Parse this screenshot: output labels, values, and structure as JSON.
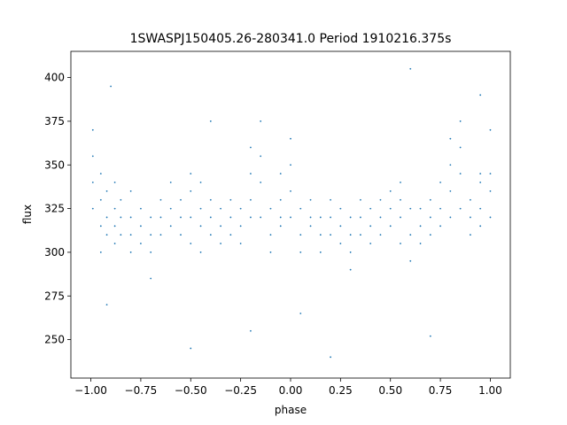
{
  "chart_data": {
    "type": "scatter",
    "title": "1SWASPJ150405.26-280341.0 Period 1910216.375s",
    "x_label": "phase",
    "y_label": "flux",
    "x": [
      -0.99,
      -0.99,
      -0.99,
      -0.99,
      -0.95,
      -0.95,
      -0.95,
      -0.95,
      -0.92,
      -0.92,
      -0.92,
      -0.92,
      -0.88,
      -0.88,
      -0.88,
      -0.88,
      -0.85,
      -0.85,
      -0.85,
      -0.8,
      -0.8,
      -0.8,
      -0.8,
      -0.75,
      -0.75,
      -0.75,
      -0.7,
      -0.7,
      -0.7,
      -0.7,
      -0.65,
      -0.65,
      -0.65,
      -0.6,
      -0.6,
      -0.6,
      -0.55,
      -0.55,
      -0.55,
      -0.5,
      -0.5,
      -0.5,
      -0.5,
      -0.45,
      -0.45,
      -0.45,
      -0.45,
      -0.4,
      -0.4,
      -0.4,
      -0.4,
      -0.35,
      -0.35,
      -0.35,
      -0.3,
      -0.3,
      -0.3,
      -0.25,
      -0.25,
      -0.25,
      -0.2,
      -0.2,
      -0.2,
      -0.2,
      -0.15,
      -0.15,
      -0.15,
      -0.15,
      -0.1,
      -0.1,
      -0.1,
      -0.05,
      -0.05,
      -0.05,
      -0.05,
      0,
      0,
      0,
      0,
      0.05,
      0.05,
      0.05,
      0.05,
      0.1,
      0.1,
      0.1,
      0.15,
      0.15,
      0.15,
      0.2,
      0.2,
      0.2,
      0.25,
      0.25,
      0.25,
      0.3,
      0.3,
      0.3,
      0.3,
      0.35,
      0.35,
      0.35,
      0.4,
      0.4,
      0.4,
      0.45,
      0.45,
      0.45,
      0.5,
      0.5,
      0.5,
      0.55,
      0.55,
      0.55,
      0.55,
      0.6,
      0.6,
      0.6,
      0.65,
      0.65,
      0.65,
      0.7,
      0.7,
      0.7,
      0.75,
      0.75,
      0.75,
      0.8,
      0.8,
      0.8,
      0.8,
      0.85,
      0.85,
      0.85,
      0.85,
      0.9,
      0.9,
      0.9,
      0.95,
      0.95,
      0.95,
      0.95,
      1.0,
      1.0,
      1.0,
      1.0,
      -0.9,
      0.6,
      -0.5,
      0.2,
      0.95,
      -0.2,
      0.7
    ],
    "values": [
      340,
      370,
      325,
      355,
      315,
      330,
      300,
      345,
      320,
      310,
      335,
      270,
      325,
      340,
      305,
      315,
      330,
      310,
      320,
      320,
      335,
      310,
      300,
      315,
      325,
      305,
      300,
      310,
      285,
      320,
      320,
      330,
      310,
      325,
      315,
      340,
      310,
      320,
      330,
      320,
      335,
      345,
      305,
      315,
      325,
      340,
      300,
      320,
      310,
      330,
      375,
      305,
      315,
      325,
      320,
      330,
      310,
      315,
      325,
      305,
      330,
      345,
      320,
      360,
      340,
      355,
      320,
      375,
      310,
      325,
      300,
      330,
      345,
      320,
      315,
      335,
      350,
      365,
      320,
      325,
      310,
      300,
      265,
      315,
      320,
      330,
      310,
      320,
      300,
      320,
      330,
      310,
      315,
      325,
      305,
      300,
      310,
      290,
      320,
      310,
      320,
      330,
      305,
      315,
      325,
      320,
      330,
      310,
      315,
      325,
      335,
      320,
      305,
      330,
      340,
      325,
      310,
      295,
      315,
      325,
      305,
      320,
      310,
      330,
      325,
      315,
      340,
      335,
      350,
      320,
      365,
      345,
      360,
      325,
      375,
      310,
      320,
      330,
      325,
      340,
      315,
      345,
      320,
      345,
      335,
      370,
      395,
      405,
      245,
      240,
      390,
      255,
      252
    ],
    "color": "#1f77b4",
    "xlim": [
      -1.1,
      1.1
    ],
    "ylim": [
      228,
      415
    ],
    "xticks": [
      {
        "value": -1,
        "label": "−1.00"
      },
      {
        "value": -0.75,
        "label": "−0.75"
      },
      {
        "value": -0.5,
        "label": "−0.50"
      },
      {
        "value": -0.25,
        "label": "−0.25"
      },
      {
        "value": 0,
        "label": "0.00"
      },
      {
        "value": 0.25,
        "label": "0.25"
      },
      {
        "value": 0.5,
        "label": "0.50"
      },
      {
        "value": 0.75,
        "label": "0.75"
      },
      {
        "value": 1,
        "label": "1.00"
      }
    ],
    "yticks": [
      250,
      275,
      300,
      325,
      350,
      375,
      400
    ]
  }
}
